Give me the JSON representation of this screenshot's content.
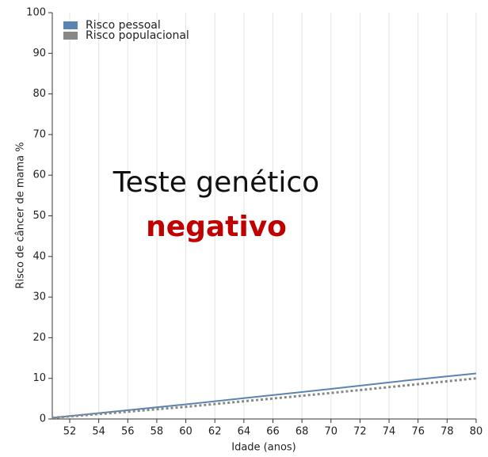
{
  "chart_data": {
    "type": "line",
    "x_label": "Idade (anos)",
    "y_label": "Risco de câncer de mama %",
    "annotations": [
      "Teste genético",
      "negativo"
    ],
    "annotation_colors": [
      "#111111",
      "#c00000"
    ],
    "x": [
      50.8,
      55,
      60,
      65,
      70,
      75,
      80
    ],
    "series": [
      {
        "name": "Risco pessoal",
        "color": "#5b84b1",
        "dashed": false,
        "values": [
          0.3,
          1.8,
          3.6,
          5.5,
          7.4,
          9.4,
          11.2
        ]
      },
      {
        "name": "Risco populacional",
        "color": "#888888",
        "dashed": true,
        "values": [
          0.3,
          1.5,
          3.0,
          4.7,
          6.4,
          8.2,
          10.0
        ]
      }
    ],
    "xlim": [
      50.8,
      80
    ],
    "xticks": [
      52,
      54,
      56,
      58,
      60,
      62,
      64,
      66,
      68,
      70,
      72,
      74,
      76,
      78,
      80
    ],
    "ylim": [
      0,
      100
    ],
    "yticks": [
      0,
      10,
      20,
      30,
      40,
      50,
      60,
      70,
      80,
      90,
      100
    ],
    "grid": "x",
    "legend": "upper left"
  }
}
